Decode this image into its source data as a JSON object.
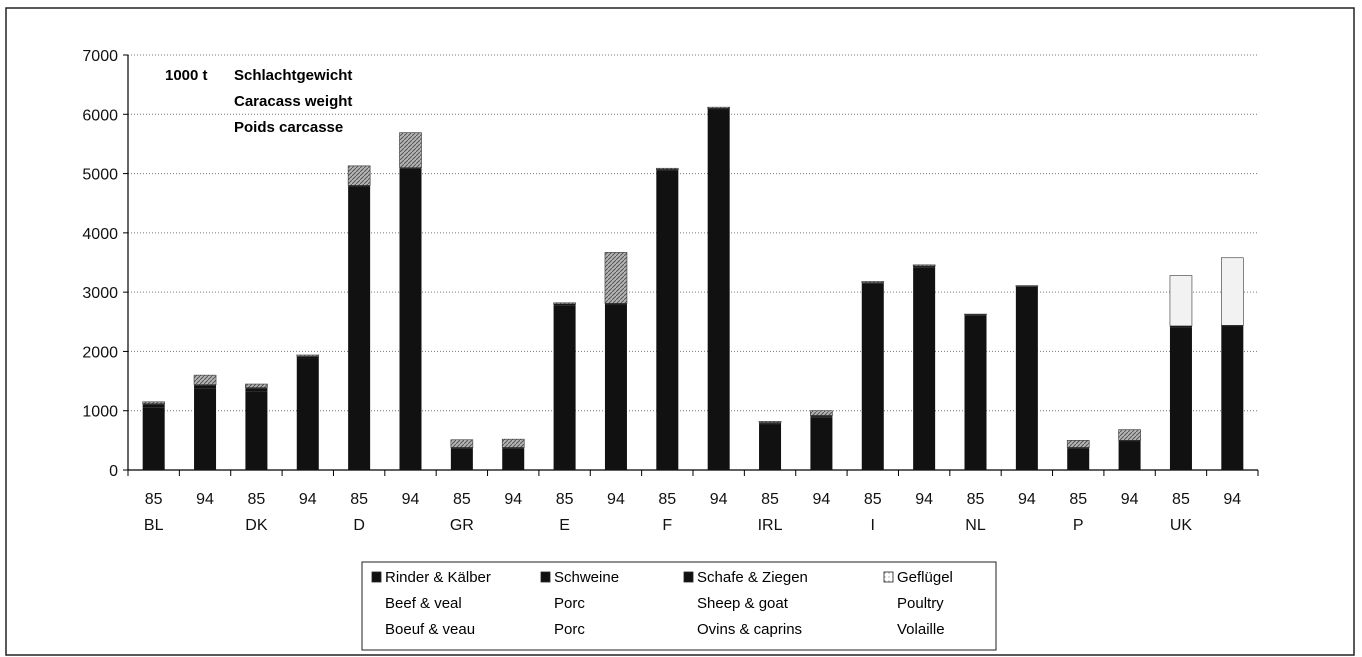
{
  "chart_data": {
    "type": "bar",
    "stacked": true,
    "annotation": [
      "1000 t",
      "Schlachtgewicht",
      "Caracass weight",
      "Poids carcasse"
    ],
    "ylim": [
      0,
      7000
    ],
    "yticks": [
      0,
      1000,
      2000,
      3000,
      4000,
      5000,
      6000,
      7000
    ],
    "grid": true,
    "legend_position": "bottom",
    "x_years": [
      "85",
      "94",
      "85",
      "94",
      "85",
      "94",
      "85",
      "94",
      "85",
      "94",
      "85",
      "94",
      "85",
      "94",
      "85",
      "94",
      "85",
      "94",
      "85",
      "94",
      "85",
      "94"
    ],
    "country_labels": [
      "BL",
      "",
      "DK",
      "",
      "D",
      "",
      "GR",
      "",
      "E",
      "",
      "F",
      "",
      "IRL",
      "",
      "I",
      "",
      "NL",
      "",
      "P",
      "",
      "UK",
      ""
    ],
    "series": [
      {
        "name": "Rinder & Kälber",
        "name_en": "Beef & veal",
        "name_fr": "Boeuf & veau",
        "color": "#111111",
        "values": [
          1050,
          1380,
          1330,
          1880,
          4780,
          5080,
          360,
          360,
          2780,
          2790,
          5050,
          6080,
          760,
          880,
          3140,
          3420,
          2610,
          3090,
          360,
          480,
          2410,
          2420
        ]
      },
      {
        "name": "Schweine",
        "name_en": "Porc",
        "name_fr": "Porc",
        "color": "#111111",
        "values": [
          50,
          40,
          40,
          30,
          0,
          0,
          0,
          0,
          0,
          0,
          0,
          0,
          20,
          20,
          0,
          0,
          0,
          0,
          0,
          0,
          0,
          0
        ]
      },
      {
        "name": "Schafe & Ziegen",
        "name_en": "Sheep & goat",
        "name_fr": "Ovins & caprins",
        "color": "#111111",
        "values": [
          20,
          20,
          20,
          10,
          20,
          20,
          20,
          20,
          20,
          20,
          20,
          20,
          20,
          20,
          20,
          20,
          10,
          10,
          20,
          20,
          20,
          20
        ]
      },
      {
        "name": "Geflügel",
        "name_en": "Poultry",
        "name_fr": "Volaille",
        "color": "#c8c8c8",
        "values": [
          30,
          160,
          60,
          20,
          330,
          590,
          130,
          140,
          20,
          860,
          20,
          20,
          20,
          80,
          20,
          20,
          10,
          10,
          120,
          180,
          850,
          1140
        ]
      }
    ]
  }
}
